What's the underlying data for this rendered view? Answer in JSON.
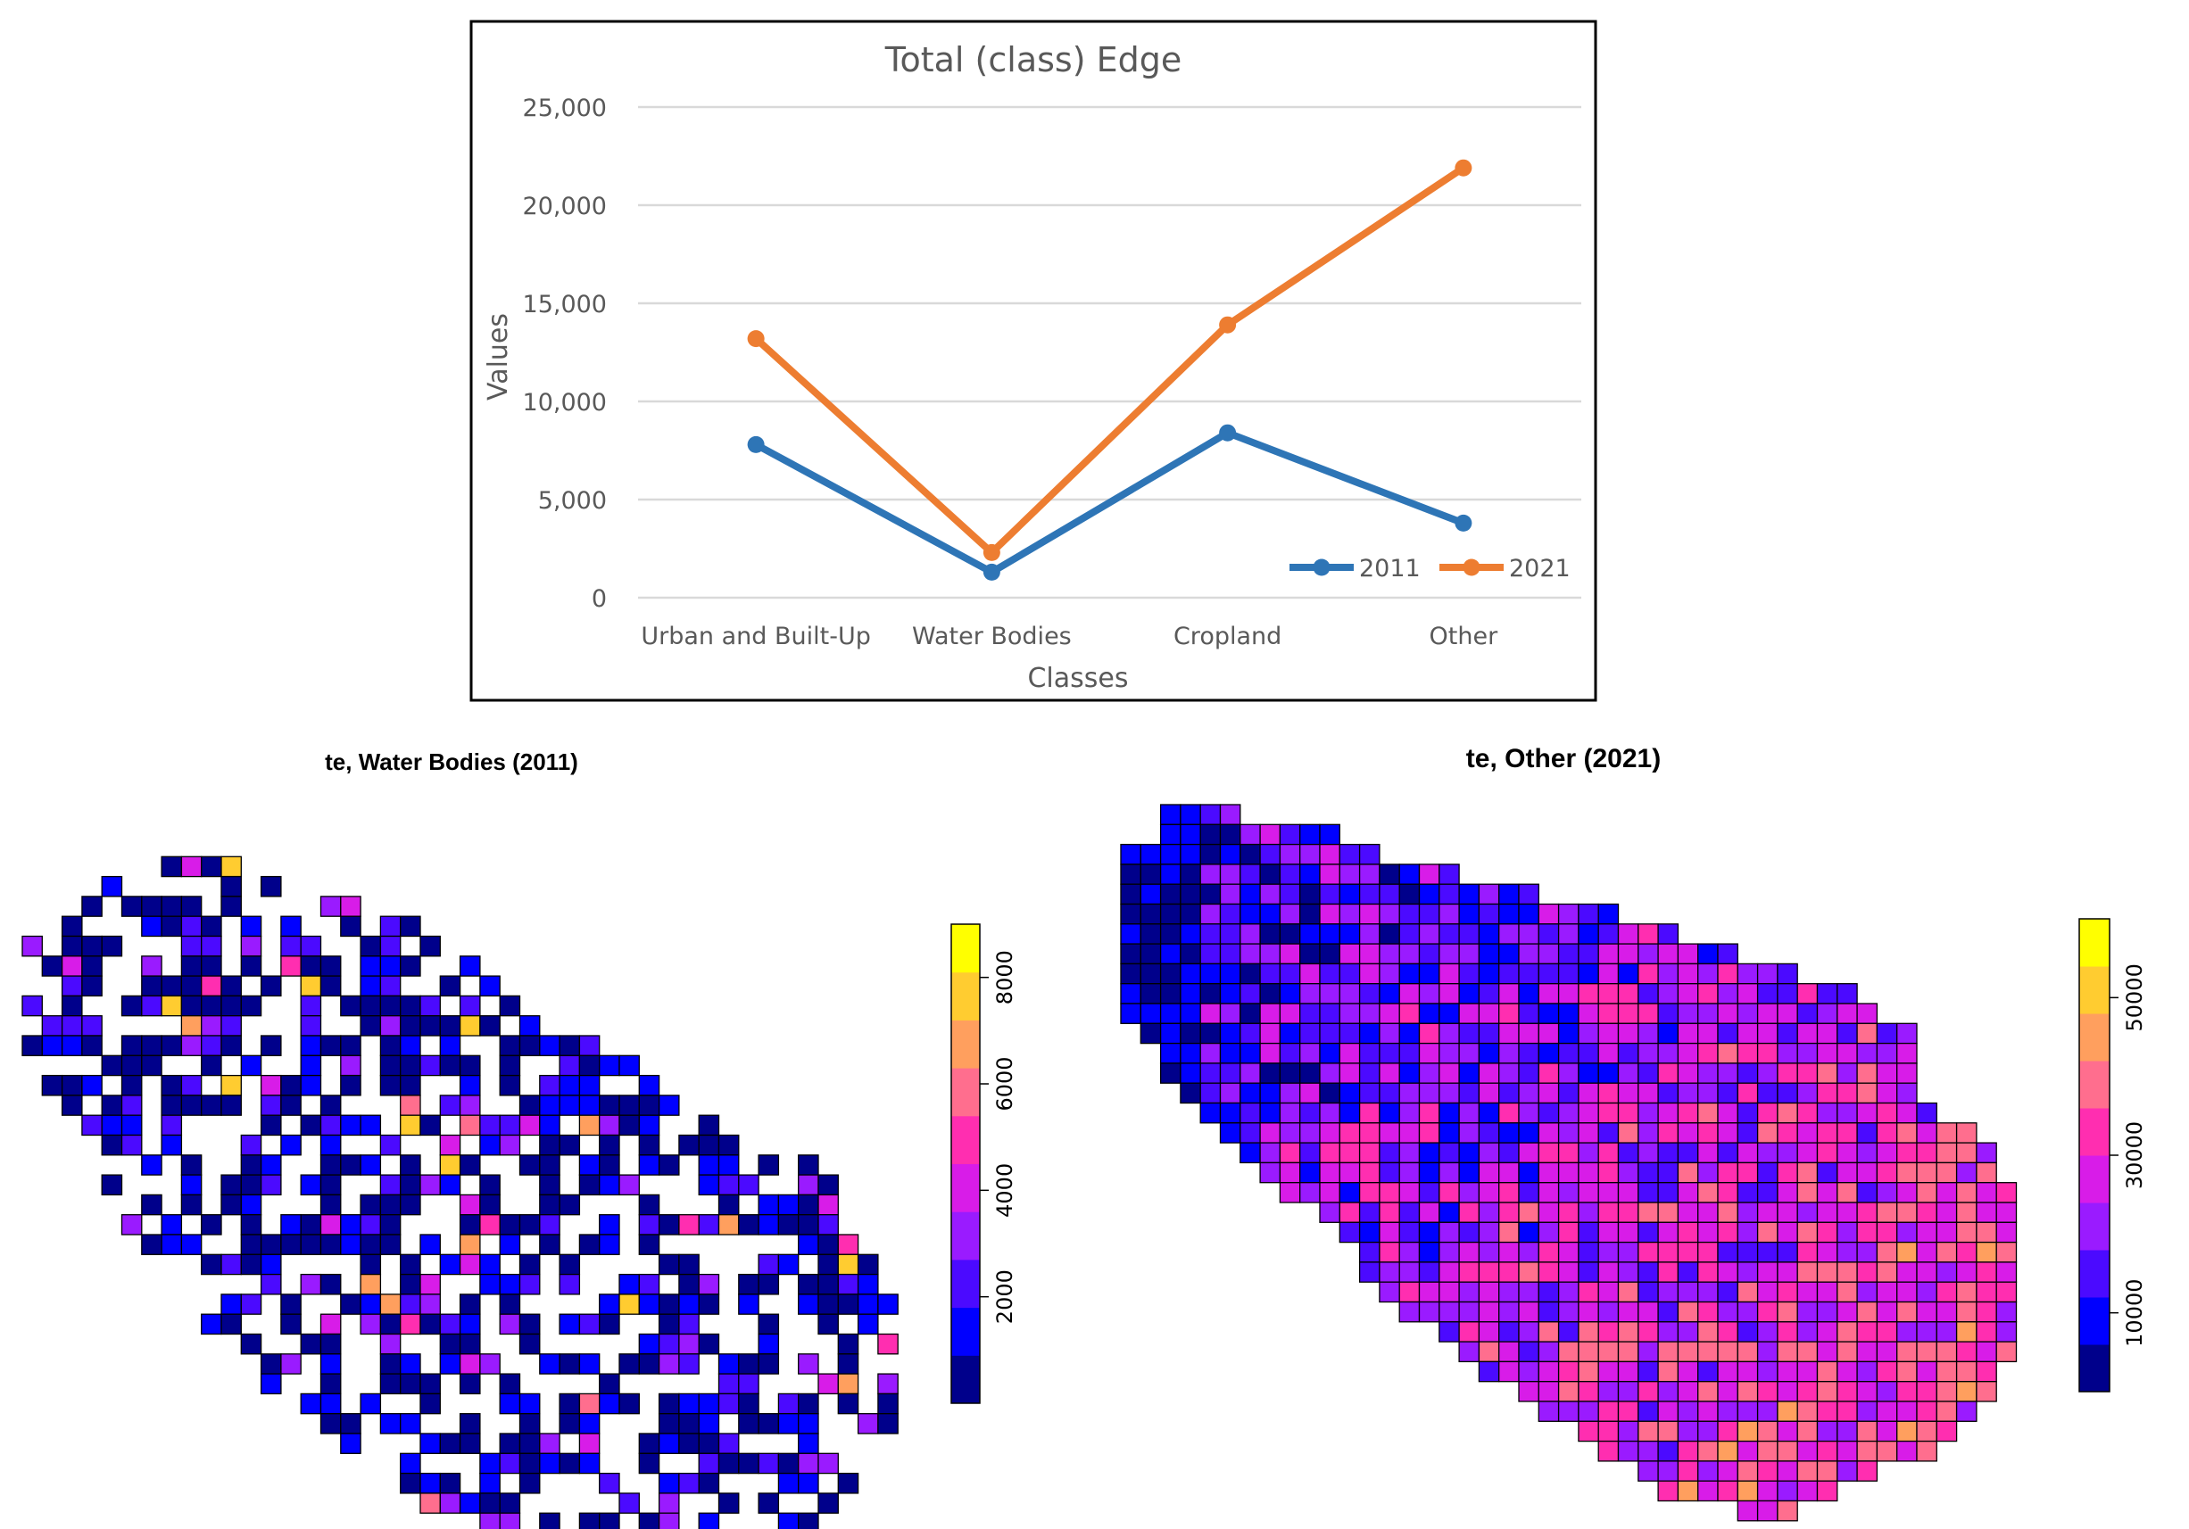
{
  "chart_data": [
    {
      "type": "line",
      "title": "Total (class) Edge",
      "xlabel": "Classes",
      "ylabel": "Values",
      "categories": [
        "Urban and Built-Up",
        "Water Bodies",
        "Cropland",
        "Other"
      ],
      "ylim": [
        0,
        25000
      ],
      "yticks": [
        0,
        5000,
        10000,
        15000,
        20000,
        25000
      ],
      "ytick_labels": [
        "0",
        "5,000",
        "10,000",
        "15,000",
        "20,000",
        "25,000"
      ],
      "grid": true,
      "legend_position": "bottom-right",
      "series": [
        {
          "name": "2011",
          "color": "#2E75B6",
          "values": [
            7800,
            1300,
            8400,
            3800
          ]
        },
        {
          "name": "2021",
          "color": "#ED7D31",
          "values": [
            13200,
            2300,
            13900,
            21900
          ]
        }
      ]
    },
    {
      "type": "heatmap",
      "title": "te, Water Bodies (2011)",
      "colorbar": {
        "min": 0,
        "max": 9000,
        "ticks": [
          2000,
          4000,
          6000,
          8000
        ],
        "tick_labels": [
          "2000",
          "4000",
          "6000",
          "8000"
        ]
      },
      "colors": [
        "#00008B",
        "#0000FF",
        "#4B0AFF",
        "#9A1BFF",
        "#D81CE8",
        "#FF2EB0",
        "#FF6E8E",
        "#FF9F5E",
        "#FFCC30",
        "#FFFF00"
      ],
      "grid_cols": 44,
      "grid_rows": 35
    },
    {
      "type": "heatmap",
      "title": "te, Other (2021)",
      "colorbar": {
        "min": 0,
        "max": 60000,
        "ticks": [
          10000,
          30000,
          50000
        ],
        "tick_labels": [
          "10000",
          "30000",
          "50000"
        ]
      },
      "colors": [
        "#00008B",
        "#0000FF",
        "#4B0AFF",
        "#9A1BFF",
        "#D81CE8",
        "#FF2EB0",
        "#FF6E8E",
        "#FF9F5E",
        "#FFCC30",
        "#FFFF00"
      ],
      "grid_cols": 45,
      "grid_rows": 36
    }
  ]
}
